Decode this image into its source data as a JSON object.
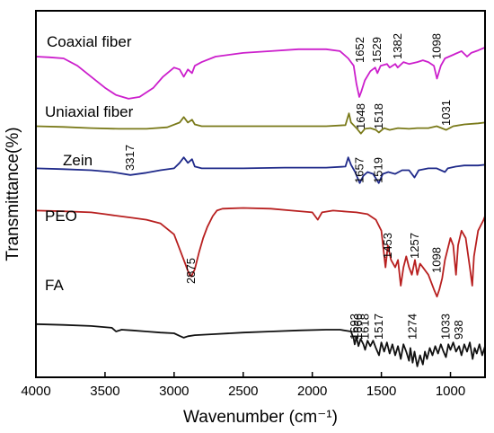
{
  "chart_data": {
    "type": "line",
    "xlabel": "Wavenumber (cm⁻¹)",
    "ylabel": "Transmittance(%)",
    "xlim": [
      4000,
      750
    ],
    "x_reversed": true,
    "x_ticks": [
      4000,
      3500,
      3000,
      2500,
      2000,
      1500,
      1000
    ],
    "y_ticks": "none",
    "grid": false,
    "legend": "none (series labeled inline)",
    "series": [
      {
        "name": "Coaxial fiber",
        "color": "#cc1fcc",
        "points": [
          [
            4000,
            0.875
          ],
          [
            3900,
            0.873
          ],
          [
            3800,
            0.87
          ],
          [
            3700,
            0.85
          ],
          [
            3600,
            0.82
          ],
          [
            3500,
            0.79
          ],
          [
            3420,
            0.77
          ],
          [
            3330,
            0.76
          ],
          [
            3250,
            0.765
          ],
          [
            3150,
            0.79
          ],
          [
            3080,
            0.82
          ],
          [
            3000,
            0.845
          ],
          [
            2960,
            0.84
          ],
          [
            2930,
            0.82
          ],
          [
            2900,
            0.84
          ],
          [
            2870,
            0.83
          ],
          [
            2850,
            0.85
          ],
          [
            2800,
            0.86
          ],
          [
            2700,
            0.875
          ],
          [
            2500,
            0.885
          ],
          [
            2300,
            0.89
          ],
          [
            2100,
            0.895
          ],
          [
            1900,
            0.895
          ],
          [
            1800,
            0.89
          ],
          [
            1740,
            0.87
          ],
          [
            1700,
            0.85
          ],
          [
            1680,
            0.8
          ],
          [
            1660,
            0.765
          ],
          [
            1645,
            0.78
          ],
          [
            1620,
            0.81
          ],
          [
            1580,
            0.835
          ],
          [
            1545,
            0.845
          ],
          [
            1529,
            0.83
          ],
          [
            1505,
            0.85
          ],
          [
            1460,
            0.855
          ],
          [
            1440,
            0.845
          ],
          [
            1400,
            0.855
          ],
          [
            1382,
            0.845
          ],
          [
            1340,
            0.86
          ],
          [
            1300,
            0.855
          ],
          [
            1240,
            0.86
          ],
          [
            1200,
            0.865
          ],
          [
            1160,
            0.86
          ],
          [
            1120,
            0.85
          ],
          [
            1098,
            0.815
          ],
          [
            1070,
            0.85
          ],
          [
            1040,
            0.87
          ],
          [
            980,
            0.88
          ],
          [
            920,
            0.89
          ],
          [
            880,
            0.875
          ],
          [
            850,
            0.885
          ],
          [
            800,
            0.892
          ],
          [
            750,
            0.9
          ]
        ]
      },
      {
        "name": "Uniaxial fiber",
        "color": "#7a7a1a",
        "points": [
          [
            4000,
            0.685
          ],
          [
            3800,
            0.683
          ],
          [
            3600,
            0.68
          ],
          [
            3400,
            0.678
          ],
          [
            3200,
            0.678
          ],
          [
            3050,
            0.682
          ],
          [
            2960,
            0.695
          ],
          [
            2930,
            0.71
          ],
          [
            2900,
            0.695
          ],
          [
            2870,
            0.703
          ],
          [
            2850,
            0.69
          ],
          [
            2800,
            0.685
          ],
          [
            2500,
            0.685
          ],
          [
            2200,
            0.685
          ],
          [
            1900,
            0.685
          ],
          [
            1760,
            0.688
          ],
          [
            1735,
            0.72
          ],
          [
            1720,
            0.695
          ],
          [
            1680,
            0.68
          ],
          [
            1648,
            0.665
          ],
          [
            1620,
            0.678
          ],
          [
            1580,
            0.68
          ],
          [
            1540,
            0.675
          ],
          [
            1518,
            0.668
          ],
          [
            1480,
            0.68
          ],
          [
            1440,
            0.675
          ],
          [
            1380,
            0.68
          ],
          [
            1300,
            0.678
          ],
          [
            1240,
            0.68
          ],
          [
            1160,
            0.68
          ],
          [
            1100,
            0.685
          ],
          [
            1031,
            0.675
          ],
          [
            980,
            0.685
          ],
          [
            900,
            0.69
          ],
          [
            800,
            0.693
          ],
          [
            750,
            0.695
          ]
        ]
      },
      {
        "name": "Zein",
        "color": "#1f2a8a",
        "points": [
          [
            4000,
            0.57
          ],
          [
            3800,
            0.568
          ],
          [
            3600,
            0.565
          ],
          [
            3450,
            0.56
          ],
          [
            3317,
            0.552
          ],
          [
            3200,
            0.558
          ],
          [
            3100,
            0.565
          ],
          [
            3000,
            0.57
          ],
          [
            2960,
            0.585
          ],
          [
            2930,
            0.6
          ],
          [
            2900,
            0.585
          ],
          [
            2870,
            0.595
          ],
          [
            2850,
            0.575
          ],
          [
            2800,
            0.57
          ],
          [
            2500,
            0.57
          ],
          [
            2200,
            0.572
          ],
          [
            1900,
            0.572
          ],
          [
            1760,
            0.575
          ],
          [
            1740,
            0.6
          ],
          [
            1720,
            0.58
          ],
          [
            1690,
            0.56
          ],
          [
            1657,
            0.53
          ],
          [
            1630,
            0.55
          ],
          [
            1600,
            0.56
          ],
          [
            1560,
            0.555
          ],
          [
            1519,
            0.53
          ],
          [
            1490,
            0.555
          ],
          [
            1450,
            0.56
          ],
          [
            1400,
            0.555
          ],
          [
            1350,
            0.565
          ],
          [
            1300,
            0.565
          ],
          [
            1260,
            0.545
          ],
          [
            1230,
            0.565
          ],
          [
            1160,
            0.57
          ],
          [
            1100,
            0.57
          ],
          [
            1040,
            0.56
          ],
          [
            1020,
            0.57
          ],
          [
            960,
            0.575
          ],
          [
            900,
            0.578
          ],
          [
            800,
            0.578
          ],
          [
            750,
            0.58
          ]
        ]
      },
      {
        "name": "PEO",
        "color": "#b82020",
        "points": [
          [
            4000,
            0.455
          ],
          [
            3800,
            0.453
          ],
          [
            3600,
            0.45
          ],
          [
            3500,
            0.445
          ],
          [
            3400,
            0.44
          ],
          [
            3300,
            0.435
          ],
          [
            3200,
            0.43
          ],
          [
            3100,
            0.42
          ],
          [
            3000,
            0.39
          ],
          [
            2960,
            0.35
          ],
          [
            2920,
            0.31
          ],
          [
            2890,
            0.28
          ],
          [
            2875,
            0.275
          ],
          [
            2850,
            0.295
          ],
          [
            2820,
            0.34
          ],
          [
            2790,
            0.38
          ],
          [
            2760,
            0.41
          ],
          [
            2720,
            0.44
          ],
          [
            2690,
            0.455
          ],
          [
            2650,
            0.46
          ],
          [
            2500,
            0.462
          ],
          [
            2300,
            0.46
          ],
          [
            2150,
            0.455
          ],
          [
            2000,
            0.45
          ],
          [
            1960,
            0.43
          ],
          [
            1930,
            0.45
          ],
          [
            1850,
            0.455
          ],
          [
            1750,
            0.452
          ],
          [
            1680,
            0.45
          ],
          [
            1600,
            0.445
          ],
          [
            1540,
            0.43
          ],
          [
            1500,
            0.4
          ],
          [
            1470,
            0.3
          ],
          [
            1453,
            0.36
          ],
          [
            1430,
            0.32
          ],
          [
            1400,
            0.3
          ],
          [
            1380,
            0.32
          ],
          [
            1360,
            0.25
          ],
          [
            1340,
            0.3
          ],
          [
            1320,
            0.33
          ],
          [
            1300,
            0.3
          ],
          [
            1280,
            0.28
          ],
          [
            1257,
            0.32
          ],
          [
            1240,
            0.28
          ],
          [
            1220,
            0.31
          ],
          [
            1200,
            0.3
          ],
          [
            1160,
            0.28
          ],
          [
            1120,
            0.24
          ],
          [
            1098,
            0.22
          ],
          [
            1080,
            0.24
          ],
          [
            1060,
            0.27
          ],
          [
            1040,
            0.32
          ],
          [
            1000,
            0.38
          ],
          [
            980,
            0.36
          ],
          [
            960,
            0.28
          ],
          [
            945,
            0.36
          ],
          [
            920,
            0.4
          ],
          [
            890,
            0.38
          ],
          [
            860,
            0.3
          ],
          [
            842,
            0.25
          ],
          [
            830,
            0.33
          ],
          [
            800,
            0.4
          ],
          [
            760,
            0.43
          ],
          [
            750,
            0.44
          ]
        ]
      },
      {
        "name": "FA",
        "color": "#111111",
        "points": [
          [
            4000,
            0.145
          ],
          [
            3800,
            0.143
          ],
          [
            3600,
            0.14
          ],
          [
            3450,
            0.135
          ],
          [
            3420,
            0.125
          ],
          [
            3380,
            0.13
          ],
          [
            3300,
            0.128
          ],
          [
            3200,
            0.125
          ],
          [
            3100,
            0.122
          ],
          [
            3000,
            0.12
          ],
          [
            2960,
            0.113
          ],
          [
            2930,
            0.108
          ],
          [
            2900,
            0.112
          ],
          [
            2850,
            0.115
          ],
          [
            2700,
            0.118
          ],
          [
            2500,
            0.122
          ],
          [
            2300,
            0.125
          ],
          [
            2100,
            0.128
          ],
          [
            1900,
            0.13
          ],
          [
            1800,
            0.13
          ],
          [
            1720,
            0.125
          ],
          [
            1700,
            0.105
          ],
          [
            1693,
            0.09
          ],
          [
            1680,
            0.11
          ],
          [
            1666,
            0.085
          ],
          [
            1650,
            0.105
          ],
          [
            1630,
            0.09
          ],
          [
            1618,
            0.075
          ],
          [
            1600,
            0.1
          ],
          [
            1580,
            0.085
          ],
          [
            1560,
            0.1
          ],
          [
            1540,
            0.08
          ],
          [
            1517,
            0.06
          ],
          [
            1500,
            0.095
          ],
          [
            1480,
            0.07
          ],
          [
            1460,
            0.095
          ],
          [
            1440,
            0.065
          ],
          [
            1420,
            0.09
          ],
          [
            1400,
            0.06
          ],
          [
            1380,
            0.085
          ],
          [
            1360,
            0.05
          ],
          [
            1340,
            0.09
          ],
          [
            1320,
            0.07
          ],
          [
            1300,
            0.045
          ],
          [
            1290,
            0.08
          ],
          [
            1274,
            0.04
          ],
          [
            1260,
            0.07
          ],
          [
            1240,
            0.03
          ],
          [
            1220,
            0.06
          ],
          [
            1200,
            0.035
          ],
          [
            1185,
            0.07
          ],
          [
            1170,
            0.05
          ],
          [
            1150,
            0.08
          ],
          [
            1130,
            0.06
          ],
          [
            1110,
            0.085
          ],
          [
            1090,
            0.065
          ],
          [
            1070,
            0.09
          ],
          [
            1050,
            0.07
          ],
          [
            1033,
            0.055
          ],
          [
            1015,
            0.09
          ],
          [
            1000,
            0.075
          ],
          [
            980,
            0.095
          ],
          [
            960,
            0.07
          ],
          [
            938,
            0.085
          ],
          [
            920,
            0.06
          ],
          [
            900,
            0.09
          ],
          [
            880,
            0.07
          ],
          [
            860,
            0.095
          ],
          [
            840,
            0.05
          ],
          [
            825,
            0.08
          ],
          [
            810,
            0.065
          ],
          [
            790,
            0.09
          ],
          [
            770,
            0.06
          ],
          [
            750,
            0.085
          ]
        ]
      }
    ],
    "series_labels": [
      {
        "text": "Coaxial fiber",
        "series": 0
      },
      {
        "text": "Uniaxial fiber",
        "series": 1
      },
      {
        "text": "Zein",
        "series": 2
      },
      {
        "text": "PEO",
        "series": 3
      },
      {
        "text": "FA",
        "series": 4
      }
    ],
    "annotations": [
      {
        "text": "1652",
        "x": 1652,
        "series": 0
      },
      {
        "text": "1529",
        "x": 1529,
        "series": 0
      },
      {
        "text": "1382",
        "x": 1382,
        "series": 0
      },
      {
        "text": "1098",
        "x": 1098,
        "series": 0
      },
      {
        "text": "1648",
        "x": 1648,
        "series": 1
      },
      {
        "text": "1518",
        "x": 1518,
        "series": 1
      },
      {
        "text": "1031",
        "x": 1031,
        "series": 1
      },
      {
        "text": "3317",
        "x": 3317,
        "series": 2
      },
      {
        "text": "1657",
        "x": 1657,
        "series": 2
      },
      {
        "text": "1519",
        "x": 1519,
        "series": 2
      },
      {
        "text": "2875",
        "x": 2875,
        "series": 3
      },
      {
        "text": "1453",
        "x": 1453,
        "series": 3
      },
      {
        "text": "1257",
        "x": 1257,
        "series": 3
      },
      {
        "text": "1098",
        "x": 1098,
        "series": 3
      },
      {
        "text": "1693",
        "x": 1693,
        "series": 4
      },
      {
        "text": "1666",
        "x": 1666,
        "series": 4
      },
      {
        "text": "1618",
        "x": 1618,
        "series": 4
      },
      {
        "text": "1517",
        "x": 1517,
        "series": 4
      },
      {
        "text": "1274",
        "x": 1274,
        "series": 4
      },
      {
        "text": "1033",
        "x": 1033,
        "series": 4
      },
      {
        "text": "938",
        "x": 938,
        "series": 4
      }
    ]
  }
}
